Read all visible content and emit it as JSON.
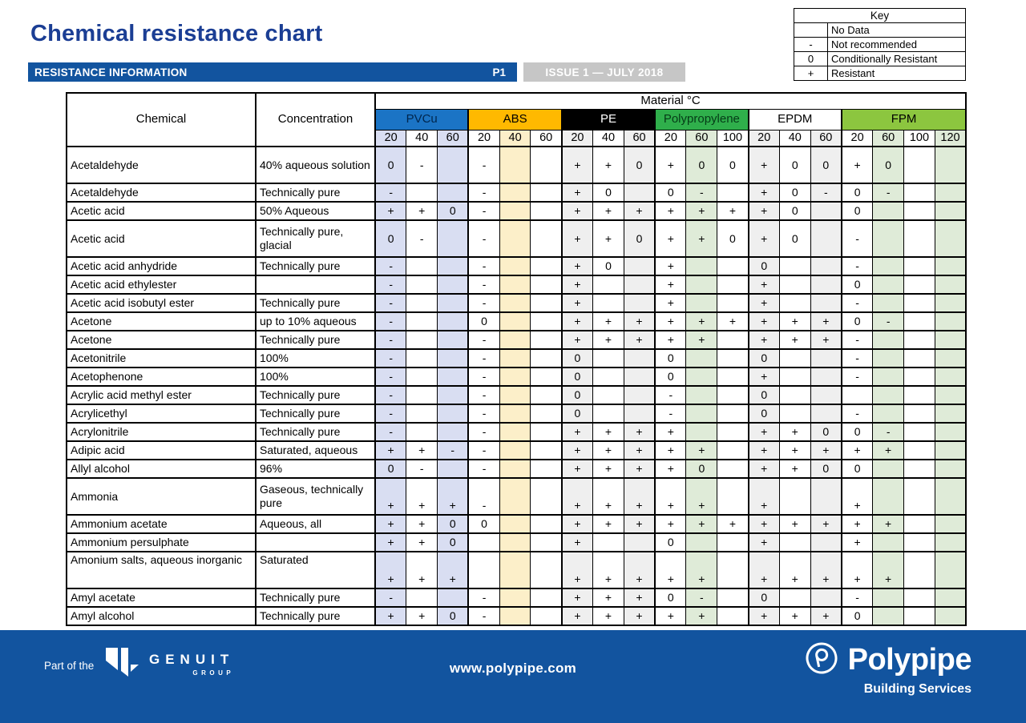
{
  "page": {
    "title": "Chemical resistance chart",
    "bar_label": "RESISTANCE INFORMATION",
    "page_no": "P1",
    "issue": "ISSUE 1 — JULY 2018"
  },
  "key": {
    "title": "Key",
    "entries": [
      {
        "symbol": "",
        "meaning": "No Data"
      },
      {
        "symbol": "-",
        "meaning": "Not recommended"
      },
      {
        "symbol": "0",
        "meaning": "Conditionally Resistant"
      },
      {
        "symbol": "+",
        "meaning": "Resistant"
      }
    ]
  },
  "table": {
    "headers": {
      "chemical": "Chemical",
      "concentration": "Concentration",
      "material_c": "Material °C"
    },
    "materials": [
      {
        "name": "PVCu",
        "header_bg": "#1B74C5",
        "header_fg": "#00264D",
        "temps": [
          "20",
          "40",
          "60"
        ],
        "shaded": [
          0,
          2
        ],
        "tint": "#D9DEF2"
      },
      {
        "name": "ABS",
        "header_bg": "#FFB900",
        "header_fg": "#000000",
        "temps": [
          "20",
          "40",
          "60"
        ],
        "shaded": [
          1
        ],
        "tint": "#FCEFC9"
      },
      {
        "name": "PE",
        "header_bg": "#000000",
        "header_fg": "#FFFFFF",
        "temps": [
          "20",
          "40",
          "60"
        ],
        "shaded": [
          0,
          2
        ],
        "tint": "#EFEFEF"
      },
      {
        "name": "Polypropylene",
        "header_bg": "#2FAF4B",
        "header_fg": "#053B17",
        "temps": [
          "20",
          "60",
          "100"
        ],
        "shaded": [
          1
        ],
        "tint": "#DFEBD8"
      },
      {
        "name": "EPDM",
        "header_bg": "#FFFFFF",
        "header_fg": "#000000",
        "temps": [
          "20",
          "40",
          "60"
        ],
        "shaded": [
          0,
          2
        ],
        "tint": "#EFEFEF"
      },
      {
        "name": "FPM",
        "header_bg": "#8CC63F",
        "header_fg": "#000000",
        "temps": [
          "20",
          "60",
          "100",
          "120"
        ],
        "shaded": [
          1,
          3
        ],
        "tint": "#DFEBD8"
      }
    ],
    "rows": [
      {
        "chemical": "Acetaldehyde",
        "concentration": "40% aqueous solution",
        "tall": true,
        "values": [
          "0",
          "-",
          "",
          "-",
          "",
          "",
          "+",
          "+",
          "0",
          "+",
          "0",
          "0",
          "+",
          "0",
          "0",
          "+",
          "0",
          "",
          ""
        ]
      },
      {
        "chemical": "Acetaldehyde",
        "concentration": "Technically pure",
        "values": [
          "-",
          "",
          "",
          "-",
          "",
          "",
          "+",
          "0",
          "",
          "0",
          "-",
          "",
          "+",
          "0",
          "-",
          "0",
          "-",
          "",
          ""
        ]
      },
      {
        "chemical": "Acetic acid",
        "concentration": "50% Aqueous",
        "values": [
          "+",
          "+",
          "0",
          "-",
          "",
          "",
          "+",
          "+",
          "+",
          "+",
          "+",
          "+",
          "+",
          "0",
          "",
          "0",
          "",
          "",
          ""
        ]
      },
      {
        "chemical": "Acetic acid",
        "concentration": "Technically pure, glacial",
        "tall": true,
        "values": [
          "0",
          "-",
          "",
          "-",
          "",
          "",
          "+",
          "+",
          "0",
          "+",
          "+",
          "0",
          "+",
          "0",
          "",
          "-",
          "",
          "",
          ""
        ]
      },
      {
        "chemical": "Acetic acid anhydride",
        "concentration": "Technically pure",
        "values": [
          "-",
          "",
          "",
          "-",
          "",
          "",
          "+",
          "0",
          "",
          "+",
          "",
          "",
          "0",
          "",
          "",
          "-",
          "",
          "",
          ""
        ]
      },
      {
        "chemical": "Acetic acid ethylester",
        "concentration": "",
        "values": [
          "-",
          "",
          "",
          "-",
          "",
          "",
          "+",
          "",
          "",
          "+",
          "",
          "",
          "+",
          "",
          "",
          "0",
          "",
          "",
          ""
        ]
      },
      {
        "chemical": "Acetic acid isobutyl ester",
        "concentration": "Technically pure",
        "values": [
          "-",
          "",
          "",
          "-",
          "",
          "",
          "+",
          "",
          "",
          "+",
          "",
          "",
          "+",
          "",
          "",
          "-",
          "",
          "",
          ""
        ]
      },
      {
        "chemical": "Acetone",
        "concentration": "up to 10% aqueous",
        "values": [
          "-",
          "",
          "",
          "0",
          "",
          "",
          "+",
          "+",
          "+",
          "+",
          "+",
          "+",
          "+",
          "+",
          "+",
          "0",
          "-",
          "",
          ""
        ]
      },
      {
        "chemical": "Acetone",
        "concentration": "Technically pure",
        "values": [
          "-",
          "",
          "",
          "-",
          "",
          "",
          "+",
          "+",
          "+",
          "+",
          "+",
          "",
          "+",
          "+",
          "+",
          "-",
          "",
          "",
          ""
        ]
      },
      {
        "chemical": "Acetonitrile",
        "concentration": "100%",
        "values": [
          "-",
          "",
          "",
          "-",
          "",
          "",
          "0",
          "",
          "",
          "0",
          "",
          "",
          "0",
          "",
          "",
          "-",
          "",
          "",
          ""
        ]
      },
      {
        "chemical": "Acetophenone",
        "concentration": "100%",
        "values": [
          "-",
          "",
          "",
          "-",
          "",
          "",
          "0",
          "",
          "",
          "0",
          "",
          "",
          "+",
          "",
          "",
          "-",
          "",
          "",
          ""
        ]
      },
      {
        "chemical": "Acrylic acid methyl ester",
        "concentration": "Technically pure",
        "values": [
          "-",
          "",
          "",
          "-",
          "",
          "",
          "0",
          "",
          "",
          "-",
          "",
          "",
          "0",
          "",
          "",
          "",
          "",
          "",
          ""
        ]
      },
      {
        "chemical": "Acrylicethyl",
        "concentration": "Technically pure",
        "values": [
          "-",
          "",
          "",
          "-",
          "",
          "",
          "0",
          "",
          "",
          "-",
          "",
          "",
          "0",
          "",
          "",
          "-",
          "",
          "",
          ""
        ]
      },
      {
        "chemical": "Acrylonitrile",
        "concentration": "Technically pure",
        "values": [
          "-",
          "",
          "",
          "-",
          "",
          "",
          "+",
          "+",
          "+",
          "+",
          "",
          "",
          "+",
          "+",
          "0",
          "0",
          "-",
          "",
          ""
        ]
      },
      {
        "chemical": "Adipic acid",
        "concentration": "Saturated, aqueous",
        "values": [
          "+",
          "+",
          "-",
          "-",
          "",
          "",
          "+",
          "+",
          "+",
          "+",
          "+",
          "",
          "+",
          "+",
          "+",
          "+",
          "+",
          "",
          ""
        ]
      },
      {
        "chemical": "Allyl alcohol",
        "concentration": "96%",
        "values": [
          "0",
          "-",
          "",
          "-",
          "",
          "",
          "+",
          "+",
          "+",
          "+",
          "0",
          "",
          "+",
          "+",
          "0",
          "0",
          "",
          "",
          ""
        ]
      },
      {
        "chemical": "Ammonia",
        "concentration": "Gaseous, technically pure",
        "tall": true,
        "bottom": true,
        "values": [
          "+",
          "+",
          "+",
          "-",
          "",
          "",
          "+",
          "+",
          "+",
          "+",
          "+",
          "",
          "+",
          "",
          "",
          "+",
          "",
          "",
          ""
        ]
      },
      {
        "chemical": "Ammonium acetate",
        "concentration": "Aqueous, all",
        "values": [
          "+",
          "+",
          "0",
          "0",
          "",
          "",
          "+",
          "+",
          "+",
          "+",
          "+",
          "+",
          "+",
          "+",
          "+",
          "+",
          "+",
          "",
          ""
        ]
      },
      {
        "chemical": "Ammonium persulphate",
        "concentration": "",
        "values": [
          "+",
          "+",
          "0",
          "",
          "",
          "",
          "+",
          "",
          "",
          "0",
          "",
          "",
          "+",
          "",
          "",
          "+",
          "",
          "",
          ""
        ]
      },
      {
        "chemical": "Amonium salts, aqueous inorganic",
        "concentration": "Saturated",
        "tall": true,
        "bottom": true,
        "label_top": true,
        "values": [
          "+",
          "+",
          "+",
          "",
          "",
          "",
          "+",
          "+",
          "+",
          "+",
          "+",
          "",
          "+",
          "+",
          "+",
          "+",
          "+",
          "",
          ""
        ]
      },
      {
        "chemical": "Amyl acetate",
        "concentration": "Technically pure",
        "values": [
          "-",
          "",
          "",
          "-",
          "",
          "",
          "+",
          "+",
          "+",
          "0",
          "-",
          "",
          "0",
          "",
          "",
          "-",
          "",
          "",
          ""
        ]
      },
      {
        "chemical": "Amyl alcohol",
        "concentration": "Technically pure",
        "values": [
          "+",
          "+",
          "0",
          "-",
          "",
          "",
          "+",
          "+",
          "+",
          "+",
          "+",
          "",
          "+",
          "+",
          "+",
          "0",
          "",
          "",
          ""
        ]
      }
    ]
  },
  "footer": {
    "part_of": "Part of the",
    "genuit_name": "GENUIT",
    "genuit_group": "GROUP",
    "url": "www.polypipe.com",
    "brand": "Polypipe",
    "brand_sub": "Building Services"
  },
  "colors": {
    "title_blue": "#1B3E94",
    "bar_blue": "#12549F",
    "bar_gray": "#C6C6C6",
    "footer_blue": "#12549F"
  }
}
